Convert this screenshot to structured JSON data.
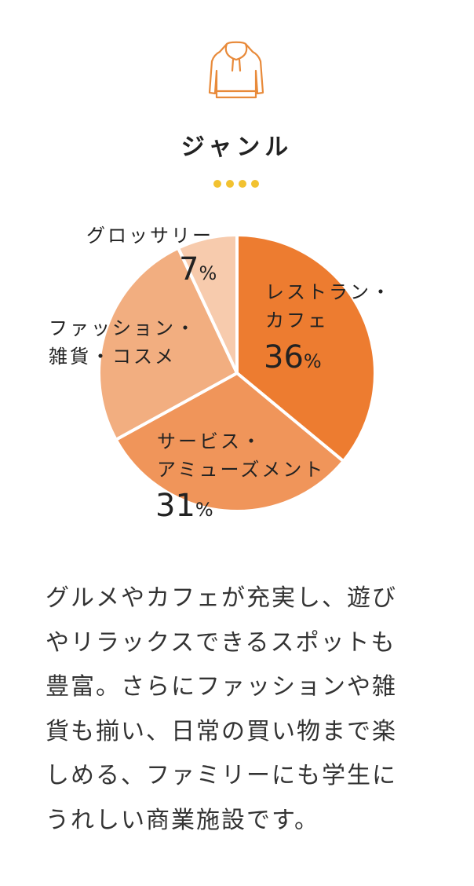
{
  "icon": "hoodie-icon",
  "title": "ジャンル",
  "colors": {
    "accent": "#ED7C30",
    "dots": "#F2C230",
    "icon": "#E88A3A"
  },
  "chart_data": {
    "type": "pie",
    "start": "12 o'clock, clockwise",
    "slices": [
      {
        "label_lines": [
          "レストラン・",
          "カフェ"
        ],
        "value": 36,
        "color": "#ED7C30"
      },
      {
        "label_lines": [
          "サービス・",
          "アミューズメント"
        ],
        "value": 31,
        "color": "#F0955A"
      },
      {
        "label_lines": [
          "ファッション・",
          "雑貨・コスメ"
        ],
        "value": 26,
        "color": "#F2AE80"
      },
      {
        "label_lines": [
          "グロッサリー"
        ],
        "value": 7,
        "color": "#F7CBAD"
      }
    ],
    "value_suffix": "%"
  },
  "description": [
    "グルメやカフェが充実し、遊び",
    "やリラックスできるスポットも",
    "豊富。さらにファッションや雑",
    "貨も揃い、日常の買い物まで楽",
    "しめる、ファミリーにも学生に",
    "うれしい商業施設です。"
  ]
}
